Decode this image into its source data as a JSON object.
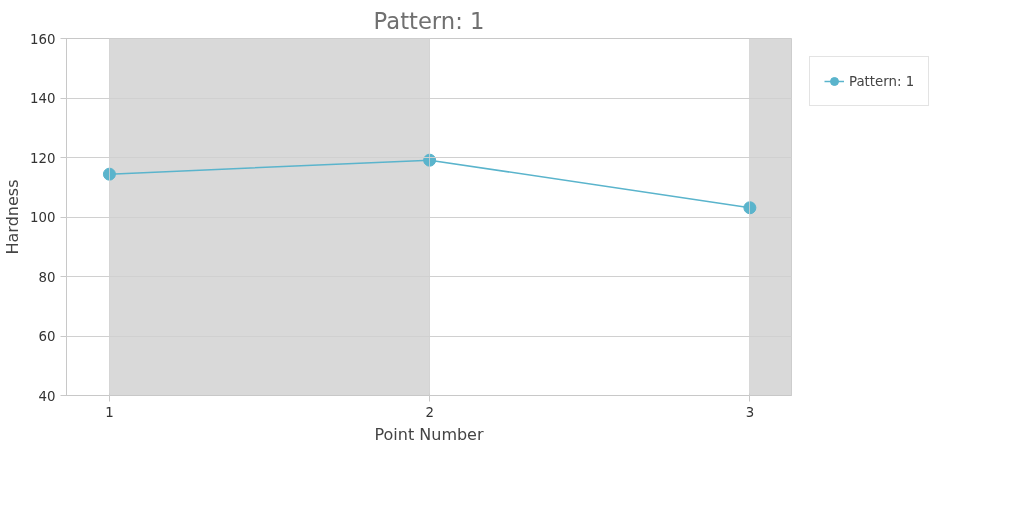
{
  "chart_data": {
    "type": "line",
    "title": "Pattern: 1",
    "xlabel": "Point Number",
    "ylabel": "Hardness",
    "x": [
      1,
      2,
      3
    ],
    "series": [
      {
        "name": "Pattern: 1",
        "color": "#5ab4cc",
        "values": [
          114.4,
          119.1,
          103.1
        ]
      }
    ],
    "xlim": [
      0.866,
      3.13
    ],
    "xticks": [
      1,
      2,
      3
    ],
    "ylim": [
      40,
      160
    ],
    "yticks": [
      40,
      60,
      80,
      100,
      120,
      140,
      160
    ],
    "bands": [
      {
        "axis": "x",
        "from": 1,
        "to": 2,
        "color": "#d9d9d9"
      },
      {
        "axis": "x",
        "from": 3,
        "to": 3.13,
        "color": "#d9d9d9"
      }
    ],
    "grid": true,
    "legend": "top right",
    "marker": "circle",
    "line_style": "solid"
  }
}
